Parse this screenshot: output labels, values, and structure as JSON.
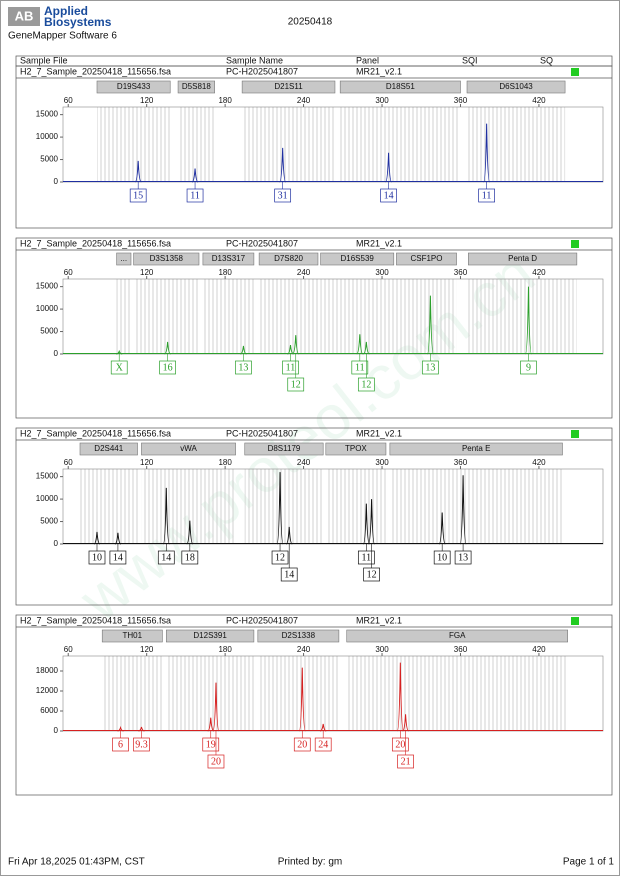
{
  "header": {
    "brand_line1": "Applied",
    "brand_line2": "Biosystems",
    "logo": "AB",
    "software": "GeneMapper Software 6",
    "date": "20250418"
  },
  "columns": [
    "Sample File",
    "Sample Name",
    "Panel",
    "SQI",
    "SQ"
  ],
  "chart_data": [
    {
      "type": "electropherogram",
      "sample_file": "H2_7_Sample_20250418_115656.fsa",
      "sample_name": "PC-H2025041807",
      "panel": "MR21_v2.1",
      "color": "#1f2fa0",
      "markers": [
        {
          "name": "D19S433",
          "range": [
            82,
            138
          ]
        },
        {
          "name": "D5S818",
          "range": [
            144,
            172
          ]
        },
        {
          "name": "D21S11",
          "range": [
            193,
            264
          ]
        },
        {
          "name": "D18S51",
          "range": [
            268,
            360
          ]
        },
        {
          "name": "D6S1043",
          "range": [
            365,
            440
          ]
        }
      ],
      "xlim": [
        56,
        469
      ],
      "xticks": [
        60,
        120,
        180,
        240,
        300,
        360,
        420
      ],
      "ylim": [
        0,
        16700
      ],
      "yticks": [
        0,
        5000,
        10000,
        15000
      ],
      "peaks": {
        "x": [
          113.5,
          157,
          224,
          305,
          380
        ],
        "values": [
          4700,
          3000,
          7600,
          6500,
          13000
        ],
        "alleles": [
          "15",
          "11",
          "31",
          "14",
          "11"
        ]
      }
    },
    {
      "type": "electropherogram",
      "sample_file": "H2_7_Sample_20250418_115656.fsa",
      "sample_name": "PC-H2025041807",
      "panel": "MR21_v2.1",
      "color": "#2ca02c",
      "markers": [
        {
          "name": "...",
          "range": [
            97,
            108
          ]
        },
        {
          "name": "D3S1358",
          "range": [
            110,
            160
          ]
        },
        {
          "name": "D13S317",
          "range": [
            163,
            202
          ]
        },
        {
          "name": "D7S820",
          "range": [
            206,
            251
          ]
        },
        {
          "name": "D16S539",
          "range": [
            253,
            309
          ]
        },
        {
          "name": "CSF1PO",
          "range": [
            311,
            357
          ]
        },
        {
          "name": "Penta D",
          "range": [
            366,
            449
          ]
        }
      ],
      "xlim": [
        56,
        469
      ],
      "xticks": [
        60,
        120,
        180,
        240,
        300,
        360,
        420
      ],
      "ylim": [
        0,
        16700
      ],
      "yticks": [
        0,
        5000,
        10000,
        15000
      ],
      "peaks": {
        "x": [
          99,
          136,
          194,
          230,
          234,
          283,
          288,
          337,
          412
        ],
        "values": [
          600,
          2700,
          1800,
          2000,
          4200,
          4400,
          2700,
          13000,
          15000
        ],
        "alleles": [
          "X",
          "16",
          "13",
          "11",
          "12",
          "11",
          "12",
          "13",
          "9"
        ]
      }
    },
    {
      "type": "electropherogram",
      "sample_file": "H2_7_Sample_20250418_115656.fsa",
      "sample_name": "PC-H2025041807",
      "panel": "MR21_v2.1",
      "color": "#111111",
      "markers": [
        {
          "name": "D2S441",
          "range": [
            69,
            113
          ]
        },
        {
          "name": "vWA",
          "range": [
            116,
            188
          ]
        },
        {
          "name": "D8S1179",
          "range": [
            195,
            255
          ]
        },
        {
          "name": "TPOX",
          "range": [
            257,
            303
          ]
        },
        {
          "name": "Penta E",
          "range": [
            306,
            438
          ]
        }
      ],
      "xlim": [
        56,
        469
      ],
      "xticks": [
        60,
        120,
        180,
        240,
        300,
        360,
        420
      ],
      "ylim": [
        0,
        16700
      ],
      "yticks": [
        0,
        5000,
        10000,
        15000
      ],
      "peaks": {
        "x": [
          82,
          98,
          135,
          153,
          222,
          229,
          288,
          292,
          346,
          362
        ],
        "values": [
          2700,
          2500,
          12500,
          5200,
          16000,
          3800,
          9000,
          10000,
          7000,
          15300
        ],
        "alleles": [
          "10",
          "14",
          "14",
          "18",
          "12",
          "14",
          "11",
          "12",
          "10",
          "13"
        ]
      }
    },
    {
      "type": "electropherogram",
      "sample_file": "H2_7_Sample_20250418_115656.fsa",
      "sample_name": "PC-H2025041807",
      "panel": "MR21_v2.1",
      "color": "#d62020",
      "markers": [
        {
          "name": "TH01",
          "range": [
            86,
            132
          ]
        },
        {
          "name": "D12S391",
          "range": [
            135,
            202
          ]
        },
        {
          "name": "D2S1338",
          "range": [
            205,
            267
          ]
        },
        {
          "name": "FGA",
          "range": [
            273,
            442
          ]
        }
      ],
      "xlim": [
        56,
        469
      ],
      "xticks": [
        60,
        120,
        180,
        240,
        300,
        360,
        420
      ],
      "ylim": [
        0,
        22500
      ],
      "yticks": [
        0,
        6000,
        12000,
        18000
      ],
      "peaks": {
        "x": [
          100,
          116,
          169,
          173,
          239,
          255,
          314,
          318
        ],
        "values": [
          1000,
          1200,
          4000,
          14500,
          19000,
          2100,
          20500,
          5000
        ],
        "alleles": [
          "6",
          "9.3",
          "19",
          "20",
          "20",
          "24",
          "20",
          "21"
        ]
      }
    }
  ],
  "footer": {
    "printed": "Fri Apr 18,2025 01:43PM, CST",
    "printed_by": "Printed by: gm",
    "page": "Page 1 of 1"
  },
  "watermark": "www.proteol.com.cn"
}
